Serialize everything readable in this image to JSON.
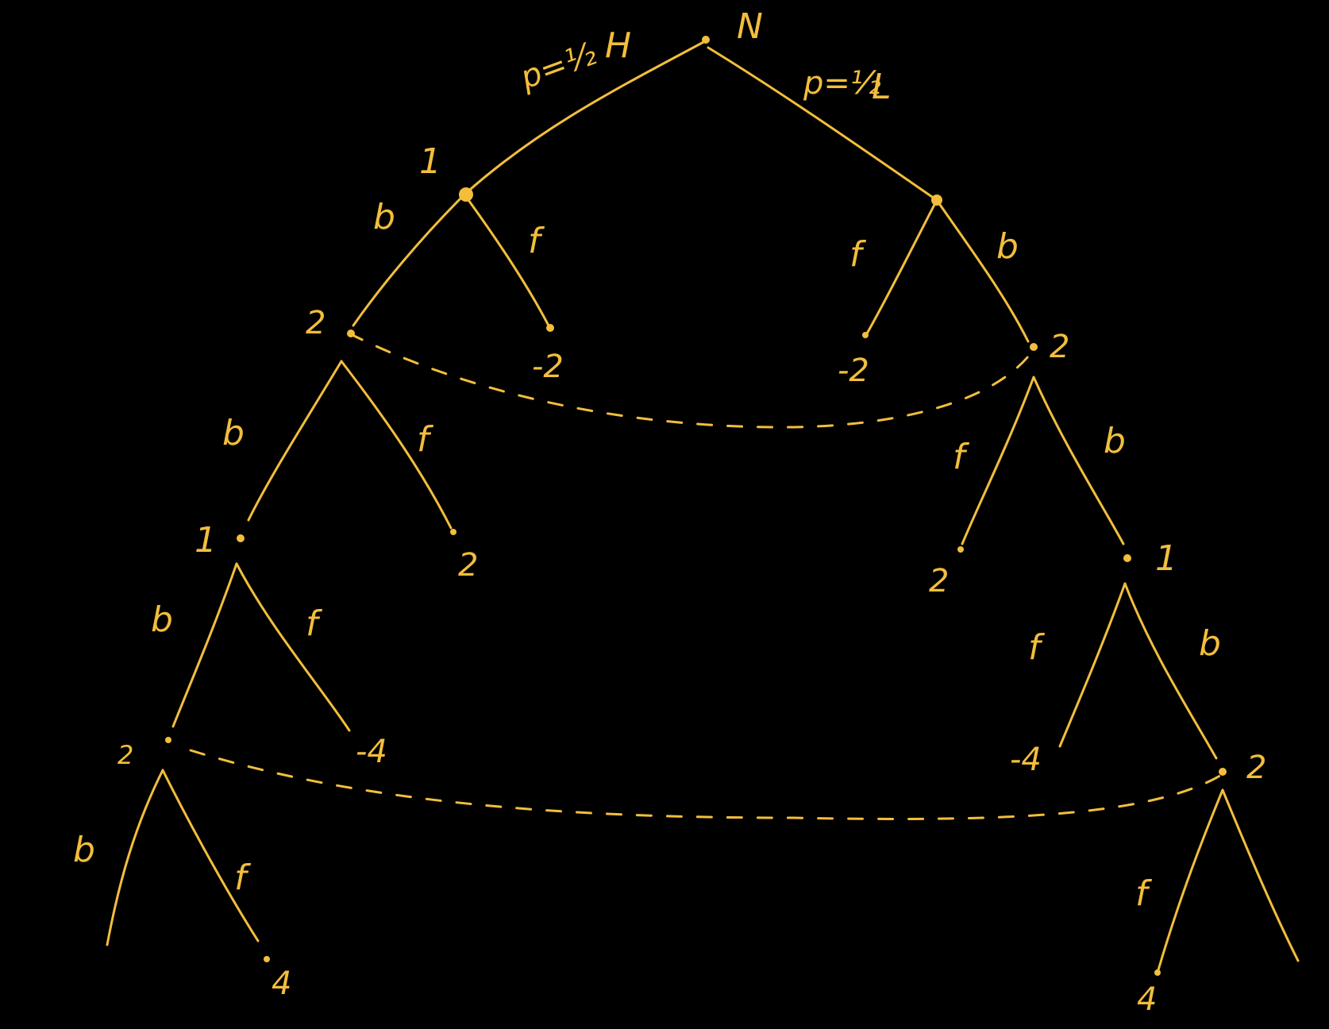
{
  "nature": {
    "label": "N",
    "prob_high": "p=½",
    "branch_high": "H",
    "prob_low": "p=½",
    "branch_low": "L"
  },
  "players": {
    "p1": "1",
    "p2": "2"
  },
  "actions": {
    "bet": "b",
    "fold": "f"
  },
  "payoffs": {
    "h_p1_fold": "-2",
    "l_p1_fold": "-2",
    "h_p2_fold": "2",
    "l_p2_fold": "2",
    "h_p1_fold_2": "-4",
    "l_p1_fold_2": "-4",
    "h_p2_fold_2": "4",
    "l_p2_fold_2": "4"
  },
  "colors": {
    "ink": "#F2BE3C",
    "background": "#000000"
  }
}
